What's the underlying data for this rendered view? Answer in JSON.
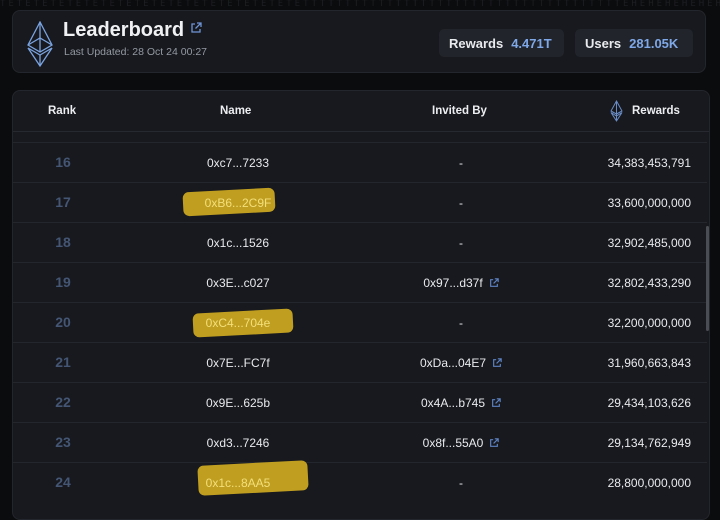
{
  "header": {
    "title": "Leaderboard",
    "last_updated": "Last Updated: 28 Oct 24 00:27",
    "stats": [
      {
        "label": "Rewards",
        "value": "4.471T"
      },
      {
        "label": "Users",
        "value": "281.05K"
      }
    ]
  },
  "table": {
    "columns": [
      "Rank",
      "Name",
      "Invited By",
      "Rewards"
    ],
    "rows": [
      {
        "rank": "16",
        "name": "0xc7...7233",
        "invited_by": "-",
        "rewards": "34,383,453,791",
        "highlighted": false
      },
      {
        "rank": "17",
        "name": "0xB6...2C9F",
        "invited_by": "-",
        "rewards": "33,600,000,000",
        "highlighted": true
      },
      {
        "rank": "18",
        "name": "0x1c...1526",
        "invited_by": "-",
        "rewards": "32,902,485,000",
        "highlighted": false
      },
      {
        "rank": "19",
        "name": "0x3E...c027",
        "invited_by": "0x97...d37f",
        "rewards": "32,802,433,290",
        "highlighted": false
      },
      {
        "rank": "20",
        "name": "0xC4...704e",
        "invited_by": "-",
        "rewards": "32,200,000,000",
        "highlighted": true
      },
      {
        "rank": "21",
        "name": "0x7E...FC7f",
        "invited_by": "0xDa...04E7",
        "rewards": "31,960,663,843",
        "highlighted": false
      },
      {
        "rank": "22",
        "name": "0x9E...625b",
        "invited_by": "0x4A...b745",
        "rewards": "29,434,103,626",
        "highlighted": false
      },
      {
        "rank": "23",
        "name": "0xd3...7246",
        "invited_by": "0x8f...55A0",
        "rewards": "29,134,762,949",
        "highlighted": false
      },
      {
        "rank": "24",
        "name": "0x1c...8AA5",
        "invited_by": "-",
        "rewards": "28,800,000,000",
        "highlighted": true
      }
    ]
  },
  "colors": {
    "accent": "#7fa8e8",
    "rank": "#445674",
    "highlight": "#c9a521",
    "background": "#0b0c0e",
    "card": "#17191e"
  },
  "icons": [
    "ethereum-logo-icon",
    "external-link-icon"
  ]
}
